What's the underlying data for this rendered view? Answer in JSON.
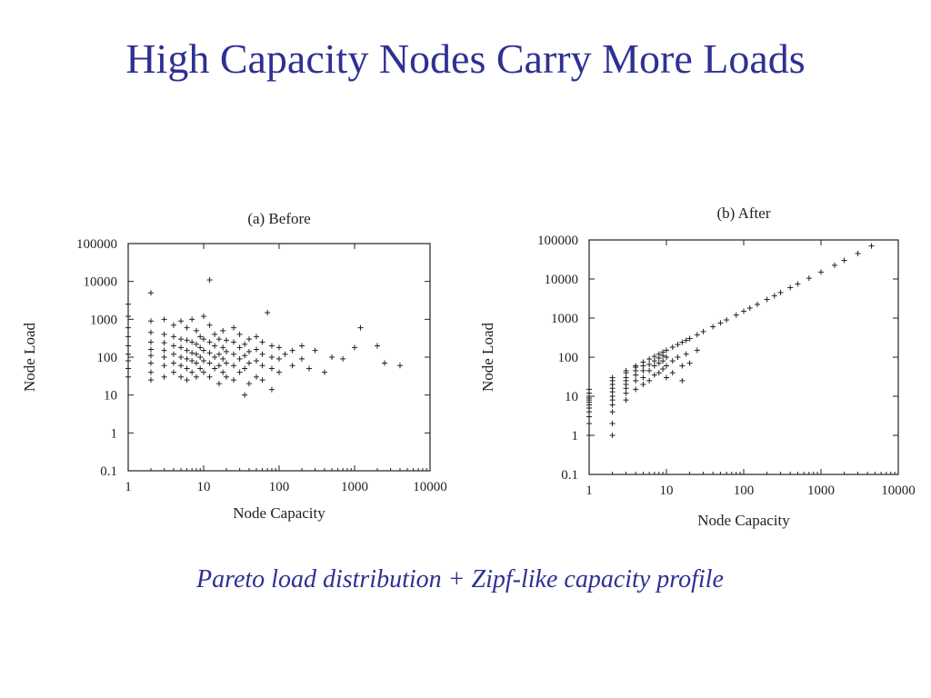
{
  "slide": {
    "title": "High Capacity Nodes Carry More Loads",
    "caption": "Pareto load distribution + Zipf-like capacity profile"
  },
  "colors": {
    "title": "#2e3192",
    "caption": "#2e3192",
    "axes": "#222222"
  },
  "chart_data": [
    {
      "type": "scatter",
      "title": "(a) Before",
      "xlabel": "Node Capacity",
      "ylabel": "Node Load",
      "x_scale": "log",
      "y_scale": "log",
      "xlim": [
        1,
        10000
      ],
      "ylim": [
        0.1,
        100000
      ],
      "x_ticks": [
        "1",
        "10",
        "100",
        "1000",
        "10000"
      ],
      "y_ticks": [
        "0.1",
        "1",
        "10",
        "100",
        "1000",
        "10000",
        "100000"
      ],
      "marker": "+",
      "legend": "none",
      "series": [
        {
          "points": [
            [
              1,
              30
            ],
            [
              1,
              50
            ],
            [
              1,
              80
            ],
            [
              1,
              120
            ],
            [
              1,
              200
            ],
            [
              1,
              350
            ],
            [
              1,
              600
            ],
            [
              1,
              1200
            ],
            [
              1,
              2500
            ],
            [
              2,
              25
            ],
            [
              2,
              40
            ],
            [
              2,
              70
            ],
            [
              2,
              110
            ],
            [
              2,
              160
            ],
            [
              2,
              250
            ],
            [
              2,
              450
            ],
            [
              2,
              900
            ],
            [
              2,
              5000
            ],
            [
              3,
              30
            ],
            [
              3,
              60
            ],
            [
              3,
              100
            ],
            [
              3,
              150
            ],
            [
              3,
              240
            ],
            [
              3,
              400
            ],
            [
              3,
              1000
            ],
            [
              4,
              40
            ],
            [
              4,
              70
            ],
            [
              4,
              120
            ],
            [
              4,
              200
            ],
            [
              4,
              350
            ],
            [
              4,
              700
            ],
            [
              5,
              30
            ],
            [
              5,
              60
            ],
            [
              5,
              100
            ],
            [
              5,
              180
            ],
            [
              5,
              300
            ],
            [
              5,
              900
            ],
            [
              6,
              25
            ],
            [
              6,
              50
            ],
            [
              6,
              90
            ],
            [
              6,
              150
            ],
            [
              6,
              280
            ],
            [
              6,
              600
            ],
            [
              7,
              40
            ],
            [
              7,
              80
            ],
            [
              7,
              130
            ],
            [
              7,
              250
            ],
            [
              7,
              1000
            ],
            [
              8,
              30
            ],
            [
              8,
              70
            ],
            [
              8,
              120
            ],
            [
              8,
              220
            ],
            [
              8,
              500
            ],
            [
              9,
              50
            ],
            [
              9,
              100
            ],
            [
              9,
              180
            ],
            [
              9,
              350
            ],
            [
              10,
              40
            ],
            [
              10,
              80
            ],
            [
              10,
              150
            ],
            [
              10,
              300
            ],
            [
              10,
              1200
            ],
            [
              12,
              11000
            ],
            [
              12,
              30
            ],
            [
              12,
              70
            ],
            [
              12,
              130
            ],
            [
              12,
              250
            ],
            [
              12,
              700
            ],
            [
              14,
              50
            ],
            [
              14,
              100
            ],
            [
              14,
              200
            ],
            [
              14,
              400
            ],
            [
              16,
              20
            ],
            [
              16,
              60
            ],
            [
              16,
              120
            ],
            [
              16,
              300
            ],
            [
              18,
              40
            ],
            [
              18,
              90
            ],
            [
              18,
              180
            ],
            [
              18,
              500
            ],
            [
              20,
              30
            ],
            [
              20,
              70
            ],
            [
              20,
              140
            ],
            [
              20,
              280
            ],
            [
              25,
              25
            ],
            [
              25,
              60
            ],
            [
              25,
              120
            ],
            [
              25,
              250
            ],
            [
              25,
              600
            ],
            [
              30,
              40
            ],
            [
              30,
              90
            ],
            [
              30,
              180
            ],
            [
              30,
              400
            ],
            [
              35,
              10
            ],
            [
              35,
              50
            ],
            [
              35,
              110
            ],
            [
              35,
              220
            ],
            [
              40,
              20
            ],
            [
              40,
              70
            ],
            [
              40,
              140
            ],
            [
              40,
              300
            ],
            [
              50,
              30
            ],
            [
              50,
              80
            ],
            [
              50,
              160
            ],
            [
              50,
              350
            ],
            [
              60,
              25
            ],
            [
              60,
              60
            ],
            [
              60,
              120
            ],
            [
              60,
              250
            ],
            [
              70,
              1500
            ],
            [
              80,
              14
            ],
            [
              80,
              50
            ],
            [
              80,
              100
            ],
            [
              80,
              200
            ],
            [
              100,
              40
            ],
            [
              100,
              90
            ],
            [
              100,
              180
            ],
            [
              120,
              120
            ],
            [
              150,
              60
            ],
            [
              150,
              150
            ],
            [
              200,
              90
            ],
            [
              200,
              200
            ],
            [
              250,
              50
            ],
            [
              300,
              150
            ],
            [
              400,
              40
            ],
            [
              500,
              100
            ],
            [
              700,
              90
            ],
            [
              1000,
              180
            ],
            [
              1200,
              600
            ],
            [
              2000,
              200
            ],
            [
              2500,
              70
            ],
            [
              4000,
              60
            ]
          ]
        }
      ]
    },
    {
      "type": "scatter",
      "title": "(b) After",
      "xlabel": "Node Capacity",
      "ylabel": "Node Load",
      "x_scale": "log",
      "y_scale": "log",
      "xlim": [
        1,
        10000
      ],
      "ylim": [
        0.1,
        100000
      ],
      "x_ticks": [
        "1",
        "10",
        "100",
        "1000",
        "10000"
      ],
      "y_ticks": [
        "0.1",
        "1",
        "10",
        "100",
        "1000",
        "10000",
        "100000"
      ],
      "marker": "+",
      "legend": "none",
      "series": [
        {
          "points": [
            [
              1,
              1
            ],
            [
              1,
              2
            ],
            [
              1,
              3
            ],
            [
              1,
              4
            ],
            [
              1,
              5
            ],
            [
              1,
              6
            ],
            [
              1,
              7
            ],
            [
              1,
              8
            ],
            [
              1,
              9
            ],
            [
              1,
              10
            ],
            [
              1,
              12
            ],
            [
              1,
              15
            ],
            [
              2,
              1
            ],
            [
              2,
              2
            ],
            [
              2,
              4
            ],
            [
              2,
              6
            ],
            [
              2,
              8
            ],
            [
              2,
              10
            ],
            [
              2,
              13
            ],
            [
              2,
              16
            ],
            [
              2,
              20
            ],
            [
              2,
              25
            ],
            [
              2,
              30
            ],
            [
              3,
              8
            ],
            [
              3,
              12
            ],
            [
              3,
              16
            ],
            [
              3,
              20
            ],
            [
              3,
              25
            ],
            [
              3,
              30
            ],
            [
              3,
              40
            ],
            [
              3,
              45
            ],
            [
              4,
              15
            ],
            [
              4,
              25
            ],
            [
              4,
              35
            ],
            [
              4,
              45
            ],
            [
              4,
              55
            ],
            [
              4,
              60
            ],
            [
              5,
              20
            ],
            [
              5,
              30
            ],
            [
              5,
              45
            ],
            [
              5,
              60
            ],
            [
              5,
              75
            ],
            [
              6,
              25
            ],
            [
              6,
              45
            ],
            [
              6,
              65
            ],
            [
              6,
              90
            ],
            [
              7,
              35
            ],
            [
              7,
              60
            ],
            [
              7,
              80
            ],
            [
              7,
              105
            ],
            [
              8,
              40
            ],
            [
              8,
              70
            ],
            [
              8,
              95
            ],
            [
              8,
              120
            ],
            [
              9,
              50
            ],
            [
              9,
              80
            ],
            [
              9,
              110
            ],
            [
              9,
              135
            ],
            [
              10,
              30
            ],
            [
              10,
              60
            ],
            [
              10,
              100
            ],
            [
              10,
              150
            ],
            [
              12,
              40
            ],
            [
              12,
              80
            ],
            [
              12,
              180
            ],
            [
              14,
              100
            ],
            [
              14,
              210
            ],
            [
              16,
              25
            ],
            [
              16,
              60
            ],
            [
              16,
              240
            ],
            [
              18,
              120
            ],
            [
              18,
              270
            ],
            [
              20,
              70
            ],
            [
              20,
              300
            ],
            [
              25,
              150
            ],
            [
              25,
              375
            ],
            [
              30,
              450
            ],
            [
              40,
              600
            ],
            [
              50,
              750
            ],
            [
              60,
              900
            ],
            [
              80,
              1200
            ],
            [
              100,
              1500
            ],
            [
              120,
              1800
            ],
            [
              150,
              2250
            ],
            [
              200,
              3000
            ],
            [
              250,
              3750
            ],
            [
              300,
              4500
            ],
            [
              400,
              6000
            ],
            [
              500,
              7500
            ],
            [
              700,
              10500
            ],
            [
              1000,
              15000
            ],
            [
              1500,
              22500
            ],
            [
              2000,
              30000
            ],
            [
              3000,
              45000
            ],
            [
              4500,
              70000
            ]
          ]
        }
      ]
    }
  ]
}
